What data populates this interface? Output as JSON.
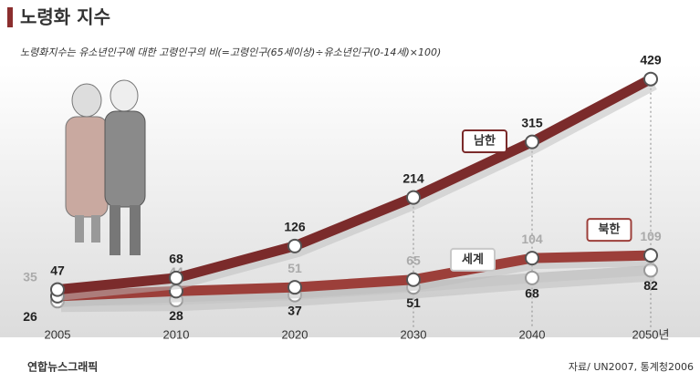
{
  "chart_data": {
    "type": "line",
    "title": "노령화 지수",
    "subtitle": "노령화지수는 유소년인구에 대한 고령인구의 비(=고령인구(65세이상)÷유소년인구(0-14세)×100)",
    "categories": [
      "2005",
      "2010",
      "2020",
      "2030",
      "2040",
      "2050년"
    ],
    "series": [
      {
        "name": "남한",
        "color": "#7b2b2b",
        "label_color": "#222",
        "values": [
          47,
          68,
          126,
          214,
          315,
          429
        ]
      },
      {
        "name": "북한",
        "color": "#9c3f3a",
        "label_color": "#aaa",
        "values": [
          35,
          44,
          51,
          65,
          104,
          109
        ]
      },
      {
        "name": "세계",
        "color": "#c8c8c8",
        "label_color": "#222",
        "values": [
          26,
          28,
          37,
          51,
          68,
          82
        ]
      }
    ],
    "ylim": [
      0,
      450
    ],
    "source": "자료/ UN2007, 통계청2006",
    "credit": "연합뉴스그래픽"
  }
}
